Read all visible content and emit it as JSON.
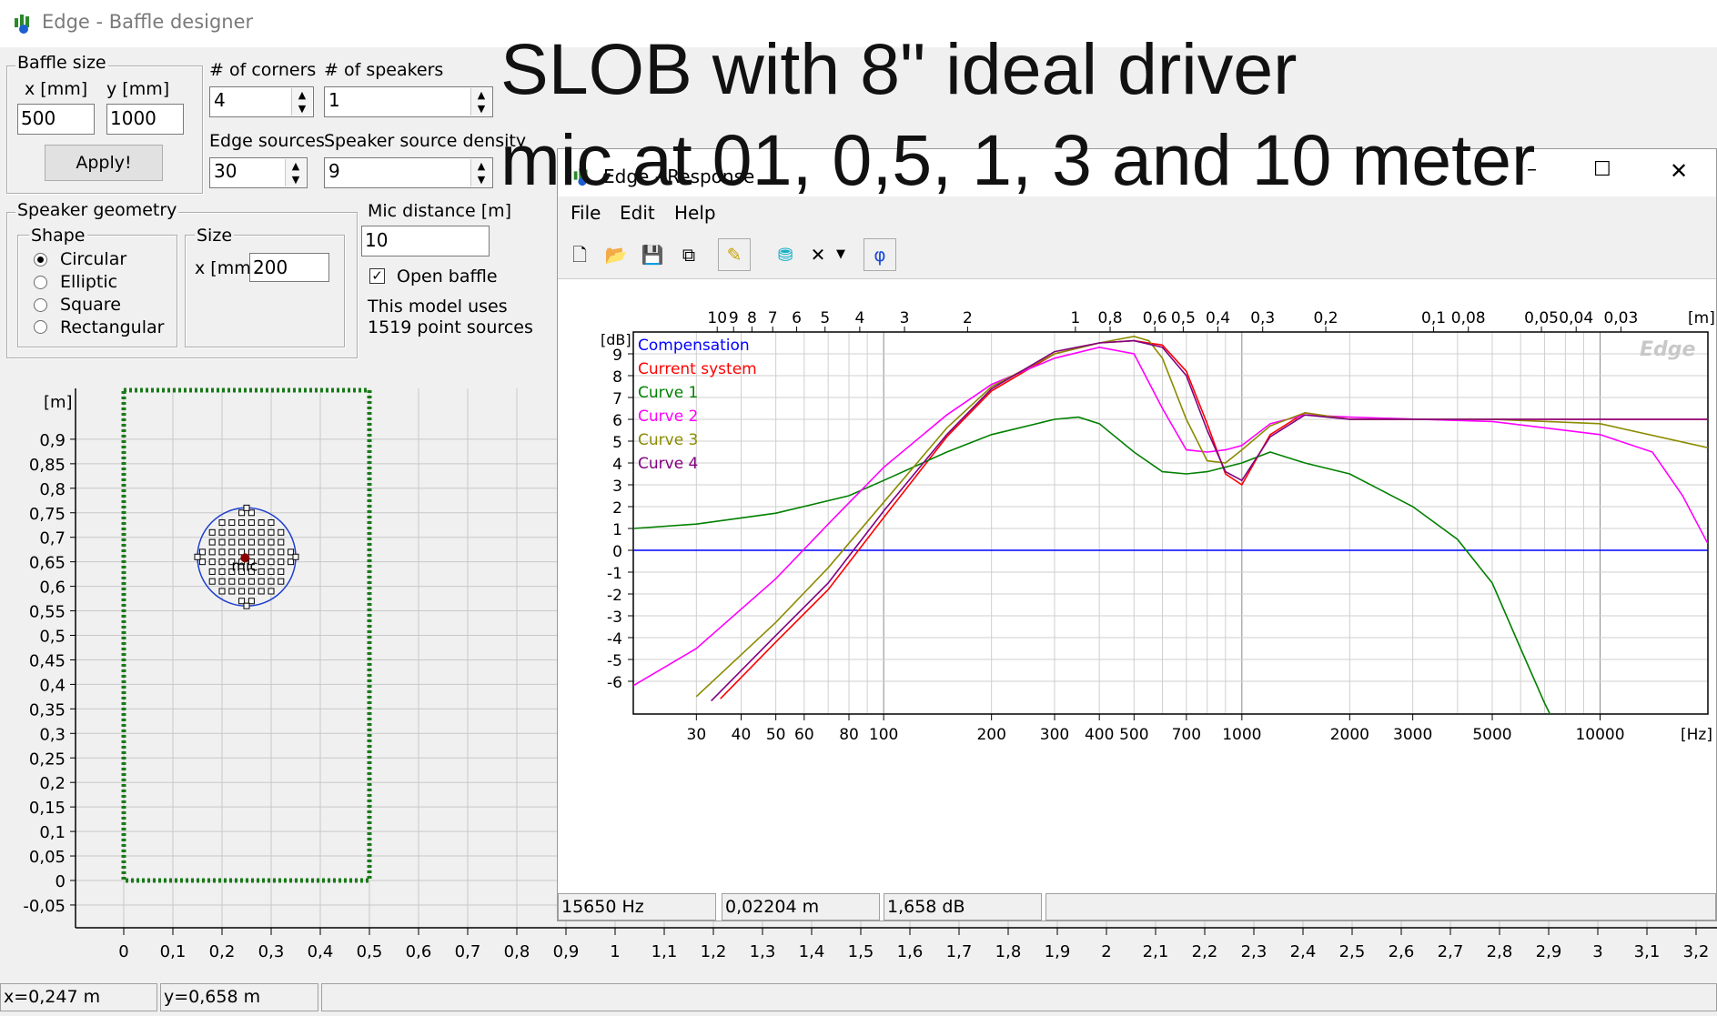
{
  "window": {
    "title": "Edge - Baffle designer"
  },
  "overlay": {
    "line1": "SLOB with 8\" ideal driver",
    "line2": "mic at  01, 0,5, 1, 3 and 10 meter"
  },
  "baffle_size": {
    "legend": "Baffle size",
    "x_label": "x [mm]",
    "y_label": "y [mm]",
    "x_value": "500",
    "y_value": "1000",
    "apply_label": "Apply!"
  },
  "corners": {
    "label": "# of corners",
    "value": "4"
  },
  "speakers": {
    "label": "# of speakers",
    "value": "1"
  },
  "edge_sources": {
    "label": "Edge sources",
    "value": "30"
  },
  "speaker_density": {
    "label": "Speaker source density",
    "value": "9"
  },
  "speaker_geometry": {
    "legend": "Speaker geometry",
    "shape_legend": "Shape",
    "shapes": [
      "Circular",
      "Elliptic",
      "Square",
      "Rectangular"
    ],
    "selected_shape": "Circular",
    "size_legend": "Size",
    "size_label": "x [mm]",
    "size_value": "200"
  },
  "mic": {
    "label": "Mic distance [m]",
    "value": "10",
    "open_baffle_label": "Open baffle",
    "open_baffle_checked": true,
    "model_text_1": "This model uses",
    "model_text_2": "1519 point sources",
    "mic_marker": "mic"
  },
  "baffle_plot": {
    "unit_label": "[m]",
    "y_ticks": [
      "0,9",
      "0,85",
      "0,8",
      "0,75",
      "0,7",
      "0,65",
      "0,6",
      "0,55",
      "0,5",
      "0,45",
      "0,4",
      "0,35",
      "0,3",
      "0,25",
      "0,2",
      "0,15",
      "0,1",
      "0,05",
      "0",
      "-0,05"
    ],
    "x_ticks": [
      "0",
      "0,1",
      "0,2",
      "0,3",
      "0,4",
      "0,5",
      "0,6",
      "0,7",
      "0,8",
      "0,9",
      "1",
      "1,1",
      "1,2",
      "1,3",
      "1,4",
      "1,5",
      "1,6",
      "1,7",
      "1,8",
      "1,9",
      "2",
      "2,1",
      "2,2",
      "2,3",
      "2,4",
      "2,5",
      "2,6",
      "2,7",
      "2,8",
      "2,9",
      "3",
      "3,1",
      "3,2"
    ]
  },
  "status_bar": {
    "x": "x=0,247 m",
    "y": "y=0,658 m"
  },
  "response_window": {
    "title": "Edge - Response",
    "menu": [
      "File",
      "Edit",
      "Help"
    ],
    "toolbar_phi": "φ",
    "watermark": "Edge",
    "status": {
      "freq": "15650 Hz",
      "wavelength": "0,02204 m",
      "level": "1,658 dB"
    }
  },
  "chart_data": {
    "type": "line",
    "ylabel": "[dB]",
    "xlabel": "[Hz]",
    "top_axis_label": "[m]",
    "x_scale": "log",
    "xlim": [
      20,
      20000
    ],
    "ylim": [
      -7.5,
      10
    ],
    "y_ticks": [
      "9",
      "8",
      "7",
      "6",
      "5",
      "4",
      "3",
      "2",
      "1",
      "0",
      "-1",
      "-2",
      "-3",
      "-4",
      "-5",
      "-6"
    ],
    "x_tick_labels": [
      "30",
      "40",
      "50",
      "60",
      "80",
      "100",
      "200",
      "300",
      "400",
      "500",
      "700",
      "1000",
      "2000",
      "3000",
      "5000",
      "10000"
    ],
    "top_tick_labels": [
      "10",
      "9",
      "8",
      "7",
      "6",
      "5",
      "4",
      "3",
      "2",
      "1",
      "0,8",
      "0,6",
      "0,5",
      "0,4",
      "0,3",
      "0,2",
      "0,1",
      "0,08",
      "0,05",
      "0,04",
      "0,03"
    ],
    "grid": true,
    "legend_position": "top-left",
    "series": [
      {
        "name": "Compensation",
        "color": "#0000ff",
        "x": [
          20,
          20000
        ],
        "y": [
          0,
          0
        ]
      },
      {
        "name": "Current system",
        "color": "#ff0000",
        "x": [
          35,
          50,
          70,
          100,
          150,
          200,
          300,
          400,
          500,
          600,
          700,
          800,
          900,
          1000,
          1200,
          1500,
          2000,
          3000,
          5000,
          10000,
          20000
        ],
        "y": [
          -6.8,
          -4.2,
          -1.8,
          1.5,
          5.2,
          7.3,
          9.0,
          9.5,
          9.6,
          9.4,
          8.2,
          5.8,
          3.5,
          3.0,
          5.3,
          6.3,
          6.0,
          6.0,
          6.0,
          6.0,
          6.0
        ]
      },
      {
        "name": "Curve 1",
        "color": "#008000",
        "x": [
          20,
          30,
          50,
          80,
          100,
          150,
          200,
          300,
          350,
          400,
          500,
          600,
          700,
          800,
          1000,
          1200,
          1500,
          2000,
          3000,
          4000,
          5000,
          6000,
          7000,
          7500
        ],
        "y": [
          1.0,
          1.2,
          1.7,
          2.5,
          3.2,
          4.5,
          5.3,
          6.0,
          6.1,
          5.8,
          4.5,
          3.6,
          3.5,
          3.6,
          4.0,
          4.5,
          4.0,
          3.5,
          2.0,
          0.5,
          -1.5,
          -4.5,
          -7.0,
          -8.0
        ]
      },
      {
        "name": "Curve 2",
        "color": "#ff00ff",
        "x": [
          20,
          30,
          50,
          70,
          100,
          150,
          200,
          300,
          400,
          500,
          600,
          700,
          800,
          900,
          1000,
          1200,
          1500,
          2000,
          5000,
          10000,
          14000,
          17000,
          20000
        ],
        "y": [
          -6.2,
          -4.5,
          -1.3,
          1.2,
          3.8,
          6.2,
          7.6,
          8.8,
          9.3,
          9.0,
          6.5,
          4.6,
          4.5,
          4.6,
          4.8,
          5.8,
          6.2,
          6.1,
          5.9,
          5.3,
          4.5,
          2.5,
          0.3
        ]
      },
      {
        "name": "Curve 3",
        "color": "#8b8b00",
        "x": [
          30,
          50,
          70,
          100,
          150,
          200,
          300,
          400,
          500,
          550,
          600,
          700,
          800,
          900,
          1000,
          1200,
          1500,
          2000,
          5000,
          10000,
          20000
        ],
        "y": [
          -6.7,
          -3.3,
          -0.8,
          2.2,
          5.6,
          7.5,
          9.0,
          9.5,
          9.8,
          9.6,
          8.8,
          6.0,
          4.1,
          4.0,
          4.6,
          5.7,
          6.3,
          6.0,
          6.0,
          5.8,
          4.7
        ]
      },
      {
        "name": "Curve 4",
        "color": "#800080",
        "x": [
          33,
          50,
          70,
          100,
          150,
          200,
          300,
          400,
          500,
          600,
          700,
          800,
          900,
          1000,
          1200,
          1500,
          2000,
          5000,
          10000,
          20000
        ],
        "y": [
          -6.9,
          -3.9,
          -1.5,
          1.8,
          5.3,
          7.4,
          9.1,
          9.5,
          9.6,
          9.3,
          8.0,
          5.5,
          3.6,
          3.2,
          5.2,
          6.2,
          6.0,
          6.0,
          6.0,
          6.0
        ]
      }
    ]
  }
}
